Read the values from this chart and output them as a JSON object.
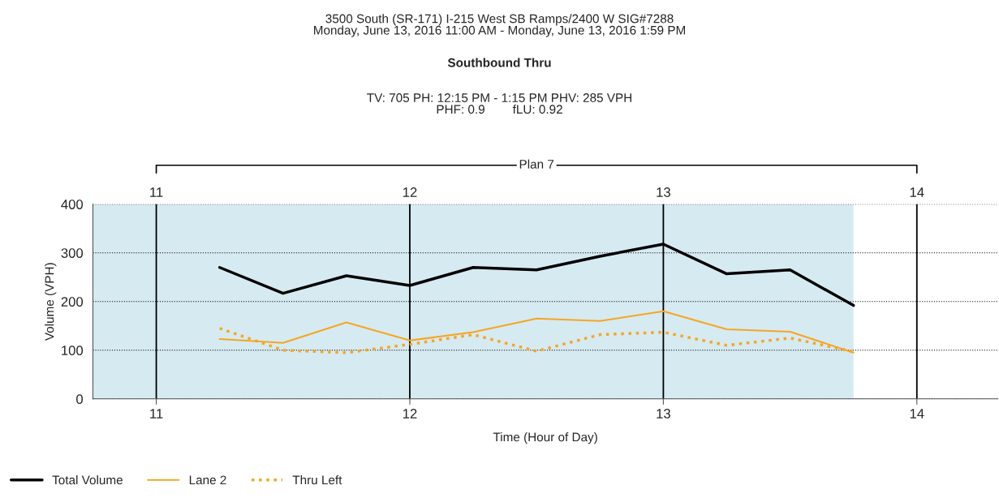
{
  "chart_data": {
    "type": "line",
    "title": "3500 South (SR-171) I-215 West SB Ramps/2400 W SIG#7288\nMonday, June 13, 2016 11:00 AM - Monday, June 13, 2016 1:59 PM",
    "subtitle": "Southbound Thru",
    "annotations": [
      "TV: 705 PH: 12:15 PM - 1:15 PM PHV: 285 VPH\nPHF: 0.9        fLU: 0.92",
      "Plan 7"
    ],
    "xlabel": "Time (Hour of Day)",
    "ylabel": "Volume (VPH)",
    "x": [
      11.25,
      11.5,
      11.75,
      12,
      12.25,
      12.5,
      12.75,
      13,
      13.25,
      13.5,
      13.75
    ],
    "series": [
      {
        "name": "Total Volume",
        "color": "#000000",
        "line_style": "solid",
        "values": [
          270,
          217,
          253,
          233,
          270,
          265,
          293,
          318,
          257,
          265,
          192
        ]
      },
      {
        "name": "Lane 2",
        "color": "#f5a623",
        "line_style": "solid",
        "values": [
          123,
          115,
          157,
          120,
          137,
          165,
          160,
          180,
          143,
          138,
          95
        ]
      },
      {
        "name": "Thru Left",
        "color": "#f5a623",
        "line_style": "dotted",
        "values": [
          145,
          100,
          95,
          112,
          132,
          98,
          132,
          137,
          110,
          125,
          97
        ]
      }
    ],
    "xlim": [
      10.75,
      14.32
    ],
    "xticks": [
      11,
      12,
      13,
      14
    ],
    "x2lim": [
      10.75,
      14.32
    ],
    "x2ticks": [
      11,
      12,
      13,
      14
    ],
    "ylim": [
      0,
      400
    ],
    "yticks": [
      0,
      100,
      200,
      300,
      400
    ],
    "bands": [
      {
        "axis": "x",
        "from": 10.75,
        "to": 13.75,
        "color": "#d6eaf1"
      }
    ],
    "grid": true,
    "legend": "bottom left",
    "marker": "none"
  }
}
